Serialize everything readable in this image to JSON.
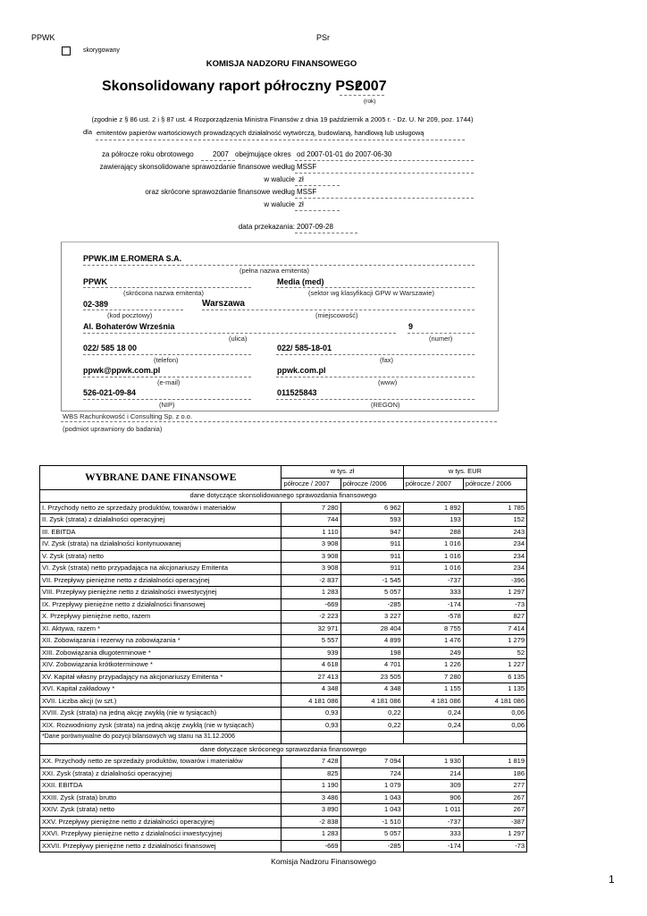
{
  "header": {
    "left": "PPWK",
    "center": "PSr",
    "corrected_label": "skorygowany",
    "authority": "KOMISJA NADZORU FINANSOWEGO"
  },
  "title": {
    "text": "Skonsolidowany raport półroczny  PSr",
    "year": "2007",
    "year_label": "(rok)"
  },
  "legal_basis": "(zgodnie z § 86 ust. 2 i § 87 ust. 4 Rozporządzenia Ministra Finansów z dnia 19 październik a 2005 r. - Dz. U. Nr 209, poz. 1744)",
  "issuer_type": {
    "prefix": "dla",
    "value": "emitentów papierów wartościowych prowadzących działalność wytwórczą, budowlaną, handlową lub usługową"
  },
  "period": {
    "label": "za półrocze roku obrotowego",
    "year": "2007",
    "range_label": "obejmujące okres",
    "range": "od 2007-01-01 do 2007-06-30"
  },
  "consolidated": {
    "label": "zawierający skonsolidowane sprawozdanie finansowe według",
    "value": "MSSF",
    "currency_label": "w walucie",
    "currency": "zł"
  },
  "abbreviated": {
    "label": "oraz skrócone sprawozdanie finansowe według",
    "value": "MSSF",
    "currency_label": "w walucie",
    "currency": "zł"
  },
  "submission": {
    "label": "data przekazania:",
    "value": "2007-09-28"
  },
  "issuer": {
    "full_name": "PPWK.IM E.ROMERA S.A.",
    "full_name_label": "(pełna nazwa emitenta)",
    "short_name": "PPWK",
    "short_name_label": "(skrócona nazwa emitenta)",
    "sector": "Media (med)",
    "sector_label": "(sektor wg klasyfikacji GPW w Warszawie)",
    "postal": "02-389",
    "postal_label": "(kod pocztowy)",
    "city": "Warszawa",
    "city_label": "(miejscowość)",
    "street": "Al. Bohaterów Września",
    "street_label": "(ulica)",
    "number": "9",
    "number_label": "(numer)",
    "phone": "022/ 585 18 00",
    "phone_label": "(telefon)",
    "fax": "022/ 585-18-01",
    "fax_label": "(fax)",
    "email": "ppwk@ppwk.com.pl",
    "email_label": "(e-mail)",
    "www": "ppwk.com.pl",
    "www_label": "(www)",
    "nip": "526-021-09-84",
    "nip_label": "(NIP)",
    "regon": "011525843",
    "regon_label": "(REGON)"
  },
  "auditor": {
    "value": "WBS Rachunkowość i Consulting Sp. z o.o.",
    "label": "(podmiot uprawniony do badania)"
  },
  "table": {
    "title": "WYBRANE DANE FINANSOWE",
    "group_pln": "w tys.  zł",
    "group_eur": "w tys.  EUR",
    "columns": [
      "półrocze / 2007",
      "półrocze /2006",
      "półrocze / 2007",
      "półrocze / 2006"
    ],
    "section1": "dane dotyczące skonsolidowanego sprawozdania finansowego",
    "rows1": [
      [
        "I. Przychody netto ze sprzedaży produktów, towarów i materiałów",
        "7 280",
        "6 962",
        "1 892",
        "1 785"
      ],
      [
        "II. Zysk (strata) z działalności operacyjnej",
        "744",
        "593",
        "193",
        "152"
      ],
      [
        "III. EBITDA",
        "1 110",
        "947",
        "288",
        "243"
      ],
      [
        "IV.  Zysk (strata) na działalności kontynuowanej",
        "3 908",
        "911",
        "1 016",
        "234"
      ],
      [
        "V.  Zysk (strata) netto",
        "3 908",
        "911",
        "1 016",
        "234"
      ],
      [
        "VI.  Zysk (strata) netto przypadająca na akcjonariuszy Emitenta",
        "3 908",
        "911",
        "1 016",
        "234"
      ],
      [
        "VII.  Przepływy pieniężne netto z działalności operacyjnej",
        "-2 837",
        "-1 545",
        "-737",
        "-396"
      ],
      [
        "VIII.  Przepływy pieniężne netto z działalności inwestycyjnej",
        "1 283",
        "5 057",
        "333",
        "1 297"
      ],
      [
        "IX.  Przepływy pieniężne netto z działalności finansowej",
        "-669",
        "-285",
        "-174",
        "-73"
      ],
      [
        "X.  Przepływy pieniężne netto, razem",
        "-2 223",
        "3 227",
        "-578",
        "827"
      ],
      [
        "XI.  Aktywa, razem *",
        "32 971",
        "28 404",
        "8 755",
        "7 414"
      ],
      [
        "XII.  Zobowiązania i rezerwy na zobowiązania *",
        "5 557",
        "4 899",
        "1 476",
        "1 279"
      ],
      [
        "XIII.  Zobowiązania długoterminowe *",
        "939",
        "198",
        "249",
        "52"
      ],
      [
        "XIV.  Zobowiązania krótkoterminowe *",
        "4 618",
        "4 701",
        "1 226",
        "1 227"
      ],
      [
        "XV.  Kapitał własny przypadający na akcjonariuszy Emitenta *",
        "27 413",
        "23 505",
        "7 280",
        "6 135"
      ],
      [
        "XVI.  Kapitał zakładowy *",
        "4 348",
        "4 348",
        "1 155",
        "1 135"
      ],
      [
        "XVII.  Liczba akcji (w szt.)",
        "4 181 086",
        "4 181 086",
        "4 181 086",
        "4 181 086"
      ],
      [
        "XVIII.  Zysk (strata) na jedną akcję zwykłą (nie w tysiącach)",
        "0,93",
        "0,22",
        "0,24",
        "0,06"
      ],
      [
        "XIX.  Rozwodniony zysk (strata) na jedną akcję zwykłą (nie w tysiącach)",
        "0,93",
        "0,22",
        "0,24",
        "0,06"
      ]
    ],
    "footnote": "*Dane porównywalne do pozycji bilansowych wg stanu na 31.12.2006",
    "section2": "dane dotyczące skróconego sprawozdania finansowego",
    "rows2": [
      [
        "XX.  Przychody netto ze sprzedaży produktów, towarów i materiałów",
        "7 428",
        "7 094",
        "1 930",
        "1 819"
      ],
      [
        "XXI.  Zysk (strata) z działalności operacyjnej",
        "825",
        "724",
        "214",
        "186"
      ],
      [
        "XXII. EBITDA",
        "1 190",
        "1 079",
        "309",
        "277"
      ],
      [
        "XXIII.  Zysk (strata) brutto",
        "3 486",
        "1 043",
        "906",
        "267"
      ],
      [
        "XXIV.  Zysk (strata) netto",
        "3 890",
        "1 043",
        "1 011",
        "267"
      ],
      [
        "XXV.  Przepływy pieniężne netto z działalności operacyjnej",
        "-2 838",
        "-1 510",
        "-737",
        "-387"
      ],
      [
        "XXVI.  Przepływy pieniężne netto z działalności inwestycyjnej",
        "1 283",
        "5 057",
        "333",
        "1 297"
      ],
      [
        "XXVII.  Przepływy pieniężne netto z działalności finansowej",
        "-669",
        "-285",
        "-174",
        "-73"
      ]
    ]
  },
  "footer": {
    "text": "Komisja Nadzoru Finansowego",
    "page": "1"
  }
}
